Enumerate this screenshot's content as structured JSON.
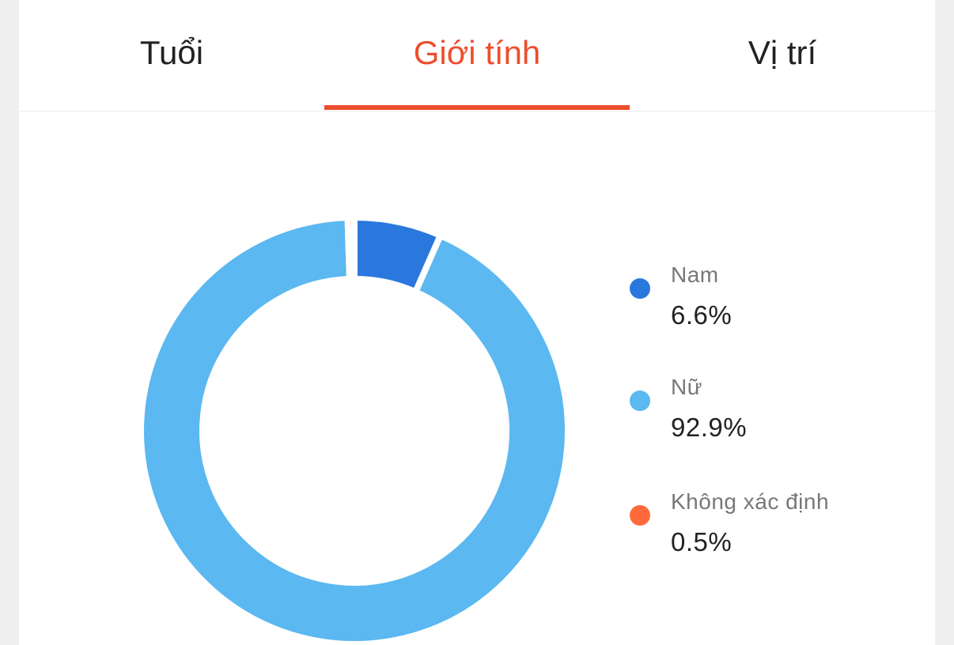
{
  "tabs": [
    {
      "label": "Tuổi",
      "active": false
    },
    {
      "label": "Giới tính",
      "active": true
    },
    {
      "label": "Vị trí",
      "active": false
    }
  ],
  "colors": {
    "accent": "#ee4d2d"
  },
  "chart_data": {
    "type": "pie",
    "donut": true,
    "legend_position": "right",
    "series": [
      {
        "name": "Nam",
        "value": 6.6,
        "label": "6.6%",
        "color": "#2a78de"
      },
      {
        "name": "Nữ",
        "value": 92.9,
        "label": "92.9%",
        "color": "#5bb8f0"
      },
      {
        "name": "Không xác định",
        "value": 0.5,
        "label": "0.5%",
        "color": "#ff6a3d"
      }
    ]
  }
}
